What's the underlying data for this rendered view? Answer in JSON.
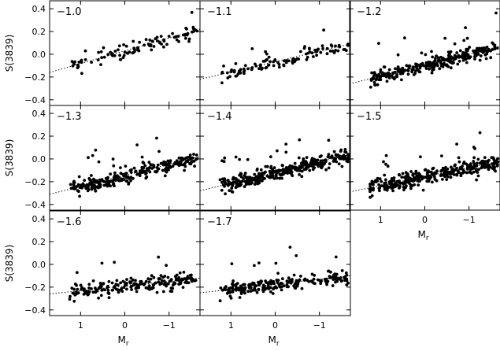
{
  "chart_data": {
    "type": "scatter",
    "grid_layout": "3x3 panel grid, 8 panels filled, bottom-right empty; shared axes",
    "ylabel": "S(3839)",
    "xlabel": "M_r",
    "xlabel_main": "M",
    "xlabel_sub": "r",
    "xlim": [
      1.7,
      -1.7
    ],
    "ylim": [
      -0.45,
      0.47
    ],
    "x_ticks": [
      1,
      0,
      -1
    ],
    "x_tick_labels": [
      "1",
      "0",
      "−1"
    ],
    "y_ticks": [
      0.4,
      0.2,
      0.0,
      -0.2,
      -0.4
    ],
    "y_tick_labels": [
      "0.4",
      "0.2",
      "0.0",
      "−0.2",
      "−0.4"
    ],
    "fit_line": "dotted linear trend in each panel",
    "panels": [
      {
        "label": "−1.0",
        "n_points": 100,
        "fit": {
          "x": [
            1.7,
            -1.7
          ],
          "y": [
            -0.16,
            0.22
          ]
        }
      },
      {
        "label": "−1.1",
        "n_points": 110,
        "fit": {
          "x": [
            1.7,
            -1.7
          ],
          "y": [
            -0.22,
            0.09
          ]
        }
      },
      {
        "label": "−1.2",
        "n_points": 300,
        "fit": {
          "x": [
            1.7,
            -1.7
          ],
          "y": [
            -0.26,
            0.07
          ]
        }
      },
      {
        "label": "−1.3",
        "n_points": 260,
        "fit": {
          "x": [
            1.7,
            -1.7
          ],
          "y": [
            -0.31,
            0.02
          ]
        }
      },
      {
        "label": "−1.4",
        "n_points": 360,
        "fit": {
          "x": [
            1.7,
            -1.7
          ],
          "y": [
            -0.28,
            0.04
          ]
        }
      },
      {
        "label": "−1.5",
        "n_points": 360,
        "fit": {
          "x": [
            1.7,
            -1.7
          ],
          "y": [
            -0.29,
            -0.02
          ]
        }
      },
      {
        "label": "−1.6",
        "n_points": 220,
        "fit": {
          "x": [
            1.7,
            -1.7
          ],
          "y": [
            -0.26,
            -0.12
          ]
        }
      },
      {
        "label": "−1.7",
        "n_points": 220,
        "fit": {
          "x": [
            1.7,
            -1.7
          ],
          "y": [
            -0.25,
            -0.1
          ]
        }
      }
    ]
  }
}
